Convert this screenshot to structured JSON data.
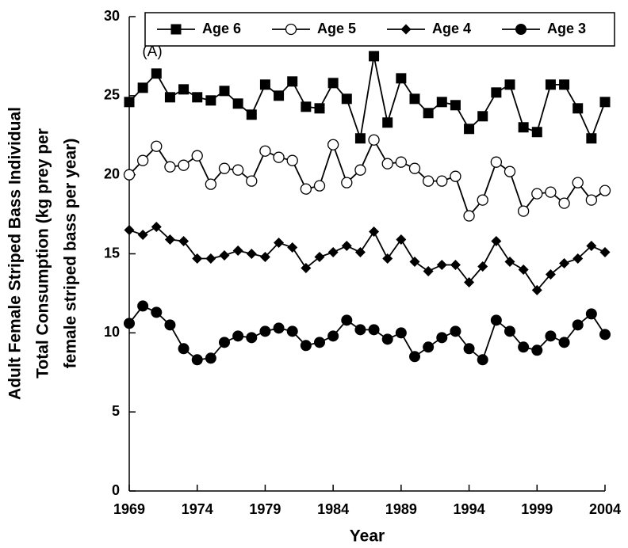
{
  "chart_data": {
    "type": "line",
    "annotation": "(A)",
    "x_label": "Year",
    "y_label": [
      "Adult Female Striped Bass Individual",
      "Total Consumption (kg prey per",
      "female striped bass per year)"
    ],
    "x": [
      1969,
      1970,
      1971,
      1972,
      1973,
      1974,
      1975,
      1976,
      1977,
      1978,
      1979,
      1980,
      1981,
      1982,
      1983,
      1984,
      1985,
      1986,
      1987,
      1988,
      1989,
      1990,
      1991,
      1992,
      1993,
      1994,
      1995,
      1996,
      1997,
      1998,
      1999,
      2000,
      2001,
      2002,
      2003,
      2004
    ],
    "xlim": [
      1969,
      2004
    ],
    "xticks": [
      1969,
      1974,
      1979,
      1984,
      1989,
      1994,
      1999,
      2004
    ],
    "ylim": [
      0,
      30
    ],
    "yticks": [
      0,
      5,
      10,
      15,
      20,
      25,
      30
    ],
    "series": [
      {
        "name": "Age 6",
        "color": "#000000",
        "marker": "square",
        "values": [
          24.6,
          25.5,
          26.4,
          24.9,
          25.4,
          24.9,
          24.7,
          25.3,
          24.5,
          23.8,
          25.7,
          25.0,
          25.9,
          24.3,
          24.2,
          25.8,
          24.8,
          22.3,
          27.5,
          23.3,
          26.1,
          24.8,
          23.9,
          24.6,
          24.4,
          22.9,
          23.7,
          25.2,
          25.7,
          23.0,
          22.7,
          25.7,
          25.7,
          24.2,
          22.3,
          24.6
        ]
      },
      {
        "name": "Age 5",
        "color": "#000000",
        "marker": "circle-open",
        "values": [
          20.0,
          20.9,
          21.8,
          20.5,
          20.6,
          21.2,
          19.4,
          20.4,
          20.3,
          19.6,
          21.5,
          21.1,
          20.9,
          19.1,
          19.3,
          21.9,
          19.5,
          20.3,
          22.2,
          20.7,
          20.8,
          20.4,
          19.6,
          19.6,
          19.9,
          17.4,
          18.4,
          20.8,
          20.2,
          17.7,
          18.8,
          18.9,
          18.2,
          19.5,
          18.4,
          19.0
        ]
      },
      {
        "name": "Age 4",
        "color": "#000000",
        "marker": "diamond",
        "values": [
          16.5,
          16.2,
          16.7,
          15.9,
          15.8,
          14.7,
          14.7,
          14.9,
          15.2,
          15.0,
          14.8,
          15.7,
          15.4,
          14.1,
          14.8,
          15.1,
          15.5,
          15.1,
          16.4,
          14.7,
          15.9,
          14.5,
          13.9,
          14.3,
          14.3,
          13.2,
          14.2,
          15.8,
          14.5,
          14.0,
          12.7,
          13.7,
          14.4,
          14.7,
          15.5,
          15.1
        ]
      },
      {
        "name": "Age 3",
        "color": "#000000",
        "marker": "circle",
        "values": [
          10.6,
          11.7,
          11.3,
          10.5,
          9.0,
          8.3,
          8.4,
          9.4,
          9.8,
          9.7,
          10.1,
          10.3,
          10.1,
          9.2,
          9.4,
          9.8,
          10.8,
          10.2,
          10.2,
          9.6,
          10.0,
          8.5,
          9.1,
          9.7,
          10.1,
          9.0,
          8.3,
          10.8,
          10.1,
          9.1,
          8.9,
          9.8,
          9.4,
          10.5,
          11.2,
          9.9
        ]
      }
    ]
  }
}
